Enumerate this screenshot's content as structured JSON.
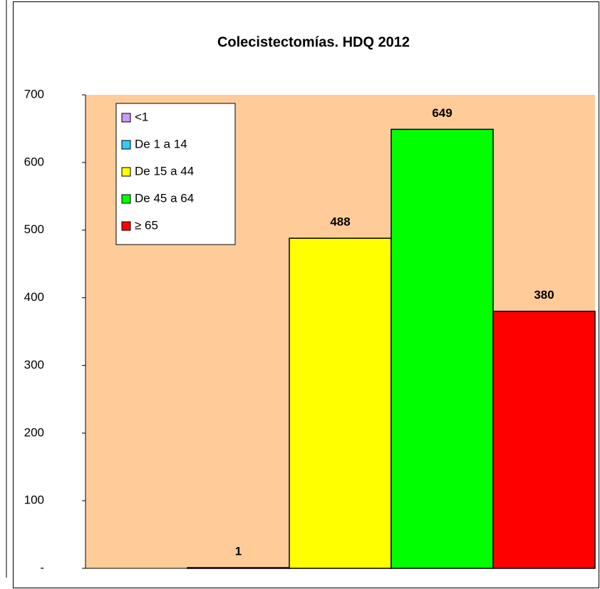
{
  "chart_data": {
    "type": "bar",
    "title": "Colecistectomías. HDQ 2012",
    "series": [
      {
        "name": "<1",
        "color": "#cc99ff",
        "values": [
          null
        ]
      },
      {
        "name": "De 1 a 14",
        "color": "#33ccff",
        "values": [
          1
        ]
      },
      {
        "name": "De 15 a 44",
        "color": "#ffff00",
        "values": [
          488
        ]
      },
      {
        "name": "De 45 a 64",
        "color": "#00ff00",
        "values": [
          649
        ]
      },
      {
        "name": "≥ 65",
        "color": "#ff0000",
        "values": [
          380
        ]
      }
    ],
    "ylim": [
      0,
      700
    ],
    "yticks": [
      {
        "value": 0,
        "label": "-"
      },
      100,
      200,
      300,
      400,
      500,
      600,
      700
    ],
    "plot_background": "#ffcc99",
    "legend": "top-left"
  }
}
